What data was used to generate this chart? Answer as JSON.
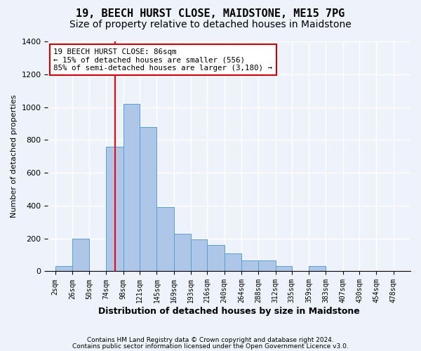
{
  "title": "19, BEECH HURST CLOSE, MAIDSTONE, ME15 7PG",
  "subtitle": "Size of property relative to detached houses in Maidstone",
  "xlabel": "Distribution of detached houses by size in Maidstone",
  "ylabel": "Number of detached properties",
  "footnote1": "Contains HM Land Registry data © Crown copyright and database right 2024.",
  "footnote2": "Contains public sector information licensed under the Open Government Licence v3.0.",
  "annotation_line1": "19 BEECH HURST CLOSE: 86sqm",
  "annotation_line2": "← 15% of detached houses are smaller (556)",
  "annotation_line3": "85% of semi-detached houses are larger (3,180) →",
  "bar_color": "#aec6e8",
  "bar_edge_color": "#5a9fd4",
  "categories": [
    "2sqm",
    "26sqm",
    "50sqm",
    "74sqm",
    "98sqm",
    "121sqm",
    "145sqm",
    "169sqm",
    "193sqm",
    "216sqm",
    "240sqm",
    "264sqm",
    "288sqm",
    "312sqm",
    "335sqm",
    "359sqm",
    "383sqm",
    "407sqm",
    "430sqm",
    "454sqm",
    "478sqm"
  ],
  "bin_left_edges": [
    2,
    26,
    50,
    74,
    98,
    121,
    145,
    169,
    193,
    216,
    240,
    264,
    288,
    312,
    335,
    359,
    383,
    407,
    430,
    454
  ],
  "bin_widths": [
    24,
    24,
    24,
    24,
    23,
    24,
    24,
    24,
    23,
    24,
    24,
    24,
    24,
    23,
    24,
    24,
    24,
    23,
    24,
    24
  ],
  "values": [
    30,
    200,
    0,
    760,
    1020,
    880,
    390,
    230,
    195,
    160,
    110,
    65,
    65,
    30,
    0,
    30,
    0,
    0,
    0,
    0
  ],
  "ylim": [
    0,
    1400
  ],
  "yticks": [
    0,
    200,
    400,
    600,
    800,
    1000,
    1200,
    1400
  ],
  "background_color": "#eef3fb",
  "grid_color": "#ffffff",
  "title_fontsize": 11,
  "subtitle_fontsize": 10,
  "annotation_box_color": "#ffffff",
  "annotation_box_edge": "#cc0000",
  "red_line_x": 86,
  "xlim_min": 2,
  "xlim_max": 502
}
